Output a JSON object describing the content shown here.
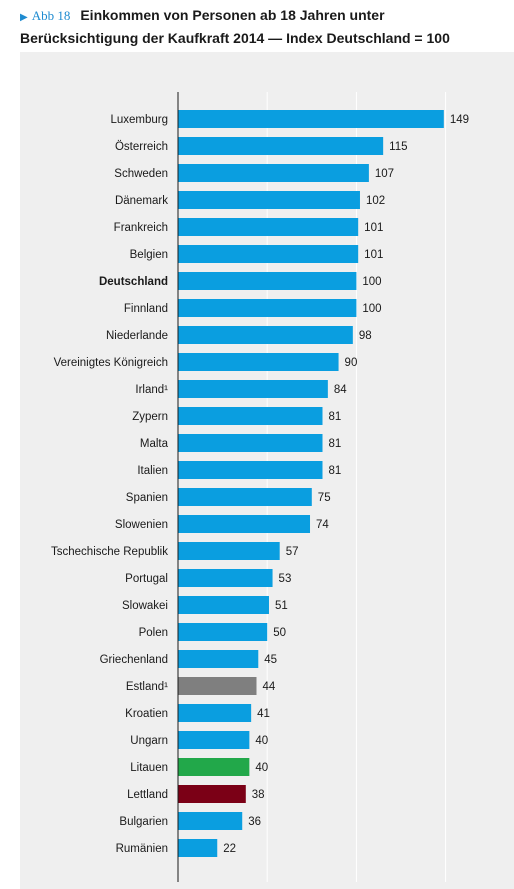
{
  "figure": {
    "tag_icon": "triangle-right-icon",
    "tag": "Abb 18",
    "title_line1": "Einkommen von Personen ab 18 Jahren unter",
    "title_line2": "Berücksichtigung der Kaufkraft 2014 — Index Deutschland = 100"
  },
  "colors": {
    "default": "#0a9ee0",
    "estland": "#7f7f7f",
    "litauen": "#22a84a",
    "lettland": "#7b0016",
    "panel": "#efefef"
  },
  "chart_data": {
    "type": "bar",
    "orientation": "horizontal",
    "title": "Einkommen von Personen ab 18 Jahren unter Berücksichtigung der Kaufkraft 2014 — Index Deutschland = 100",
    "xlim": [
      0,
      150
    ],
    "grid": true,
    "categories": [
      "Luxemburg",
      "Österreich",
      "Schweden",
      "Dänemark",
      "Frankreich",
      "Belgien",
      "Deutschland",
      "Finnland",
      "Niederlande",
      "Vereinigtes Königreich",
      "Irland¹",
      "Zypern",
      "Malta",
      "Italien",
      "Spanien",
      "Slowenien",
      "Tschechische Republik",
      "Portugal",
      "Slowakei",
      "Polen",
      "Griechenland",
      "Estland¹",
      "Kroatien",
      "Ungarn",
      "Litauen",
      "Lettland",
      "Bulgarien",
      "Rumänien"
    ],
    "values": [
      149,
      115,
      107,
      102,
      101,
      101,
      100,
      100,
      98,
      90,
      84,
      81,
      81,
      81,
      75,
      74,
      57,
      53,
      51,
      50,
      45,
      44,
      41,
      40,
      40,
      38,
      36,
      22
    ],
    "bold_categories": [
      "Deutschland"
    ],
    "highlight": {
      "Estland¹": "estland",
      "Litauen": "litauen",
      "Lettland": "lettland"
    }
  }
}
